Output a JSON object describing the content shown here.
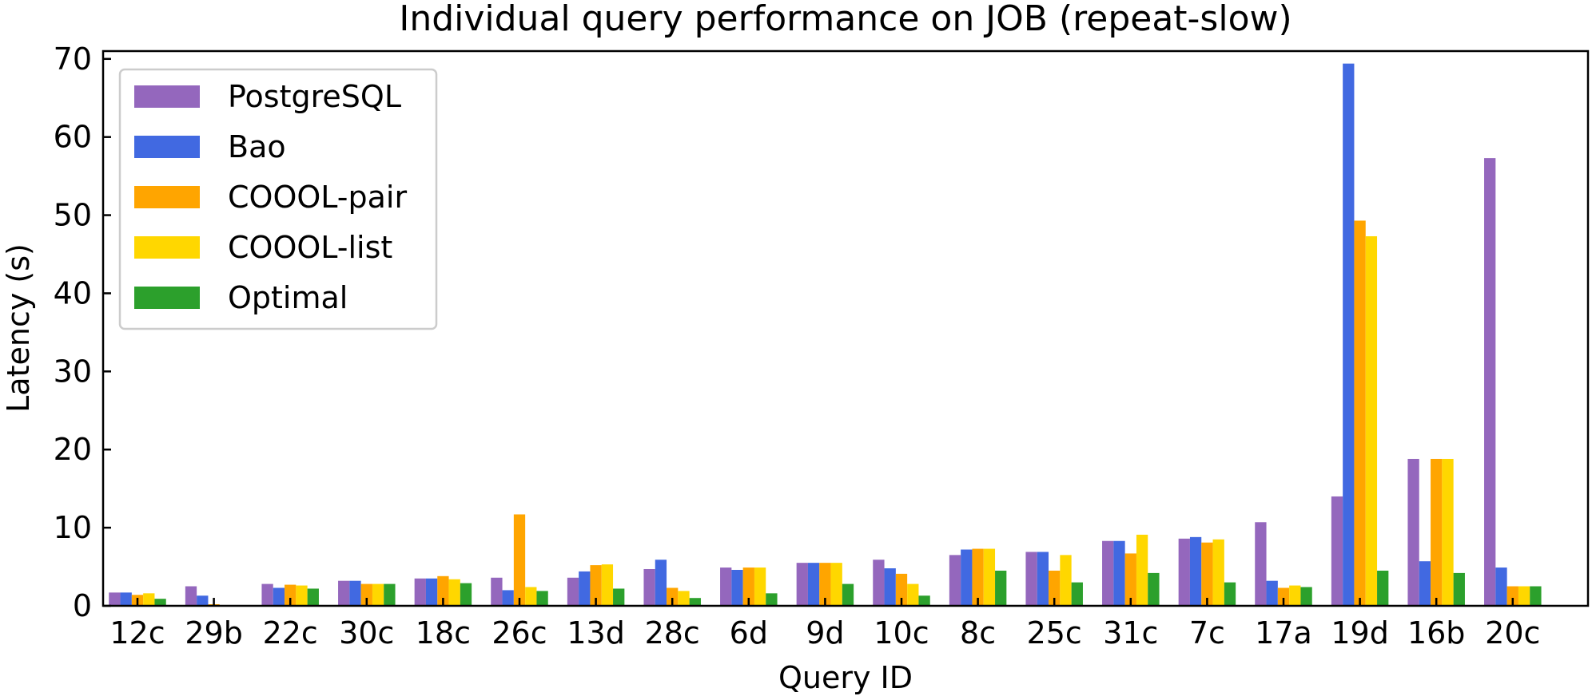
{
  "chart_data": {
    "type": "bar",
    "title": "Individual query performance on JOB (repeat-slow)",
    "xlabel": "Query ID",
    "ylabel": "Latency (s)",
    "ylim": [
      0,
      71
    ],
    "yticks": [
      0,
      10,
      20,
      30,
      40,
      50,
      60,
      70
    ],
    "grid": false,
    "legend_position": "top-left",
    "categories": [
      "12c",
      "29b",
      "22c",
      "30c",
      "18c",
      "26c",
      "13d",
      "28c",
      "6d",
      "9d",
      "10c",
      "8c",
      "25c",
      "31c",
      "7c",
      "17a",
      "19d",
      "16b",
      "20c"
    ],
    "series": [
      {
        "name": "PostgreSQL",
        "color": "#9467bd",
        "values": [
          1.7,
          2.5,
          2.8,
          3.2,
          3.5,
          3.6,
          3.6,
          4.7,
          4.9,
          5.5,
          5.9,
          6.5,
          6.9,
          8.3,
          8.6,
          10.7,
          14.0,
          18.8,
          57.3
        ]
      },
      {
        "name": "Bao",
        "color": "#4169e1",
        "values": [
          1.7,
          1.3,
          2.3,
          3.2,
          3.5,
          2.0,
          4.4,
          5.9,
          4.6,
          5.5,
          4.8,
          7.2,
          6.9,
          8.3,
          8.8,
          3.2,
          69.4,
          5.7,
          4.9
        ]
      },
      {
        "name": "COOOL-pair",
        "color": "#ffa500",
        "values": [
          1.4,
          0.2,
          2.7,
          2.8,
          3.8,
          11.7,
          5.2,
          2.3,
          4.9,
          5.5,
          4.1,
          7.3,
          4.5,
          6.7,
          8.1,
          2.3,
          49.3,
          18.8,
          2.5
        ]
      },
      {
        "name": "COOOL-list",
        "color": "#ffd700",
        "values": [
          1.6,
          0.1,
          2.6,
          2.8,
          3.4,
          2.4,
          5.3,
          1.9,
          4.9,
          5.5,
          2.8,
          7.3,
          6.5,
          9.1,
          8.5,
          2.6,
          47.3,
          18.8,
          2.5
        ]
      },
      {
        "name": "Optimal",
        "color": "#2ca02c",
        "values": [
          0.9,
          0.1,
          2.2,
          2.8,
          2.9,
          1.9,
          2.2,
          1.0,
          1.6,
          2.8,
          1.3,
          4.5,
          3.0,
          4.2,
          3.0,
          2.4,
          4.5,
          4.2,
          2.5
        ]
      }
    ]
  }
}
